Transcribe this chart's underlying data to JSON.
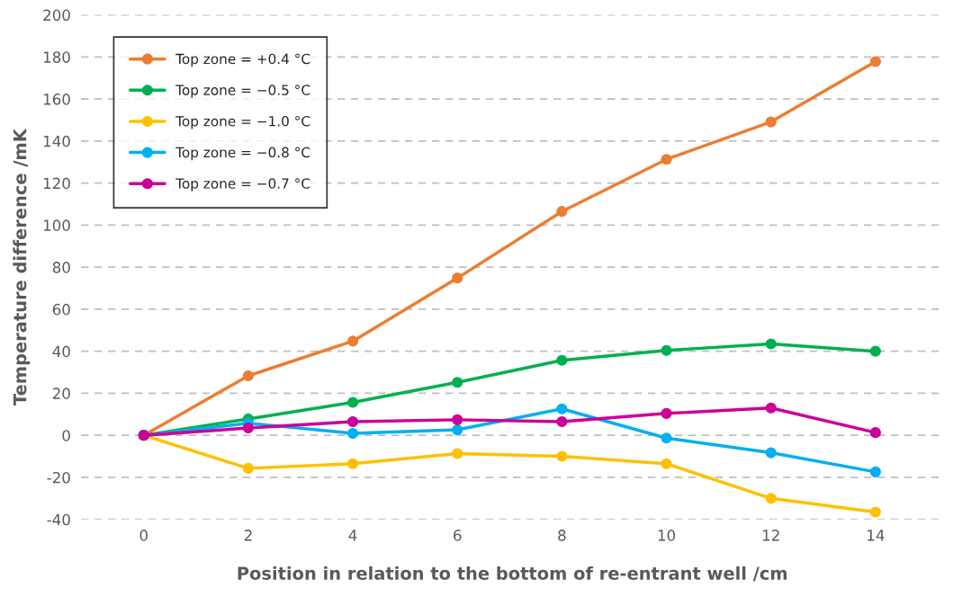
{
  "chart_data": {
    "type": "line",
    "xlabel": "Position in relation to the bottom of re-entrant well /cm",
    "ylabel": "Temperature difference /mK",
    "x": [
      0,
      2,
      4,
      6,
      8,
      10,
      12,
      14
    ],
    "series": [
      {
        "name": "Top zone = +0.4 °C",
        "color": "#ed7d31",
        "values": [
          0,
          28.3,
          44.8,
          74.8,
          106.5,
          131.3,
          149.1,
          177.8
        ]
      },
      {
        "name": "Top zone = −0.5 °C",
        "color": "#00b050",
        "values": [
          0,
          7.8,
          15.7,
          25.2,
          35.7,
          40.4,
          43.5,
          40
        ]
      },
      {
        "name": "Top zone = −1.0 °C",
        "color": "#ffc000",
        "values": [
          0,
          -15.7,
          -13.5,
          -8.7,
          -10,
          -13.5,
          -30,
          -36.5
        ]
      },
      {
        "name": "Top zone = −0.8 °C",
        "color": "#00b0f0",
        "values": [
          0,
          5.8,
          0.9,
          2.6,
          12.6,
          -1.3,
          -8.3,
          -17.4
        ]
      },
      {
        "name": "Top zone = −0.7 °C",
        "color": "#cc0099",
        "values": [
          0,
          3.5,
          6.5,
          7.4,
          6.5,
          10.4,
          13,
          1.3
        ]
      }
    ],
    "xlim": [
      -1.2,
      15.3
    ],
    "xticks": [
      0,
      2,
      4,
      6,
      8,
      10,
      12,
      14
    ],
    "ylim": [
      -40,
      200
    ],
    "yticks": [
      -40,
      -20,
      0,
      20,
      40,
      60,
      80,
      100,
      120,
      140,
      160,
      180,
      200
    ],
    "grid": "y",
    "legend": "top left",
    "marker": "circle",
    "line_style": "solid"
  }
}
